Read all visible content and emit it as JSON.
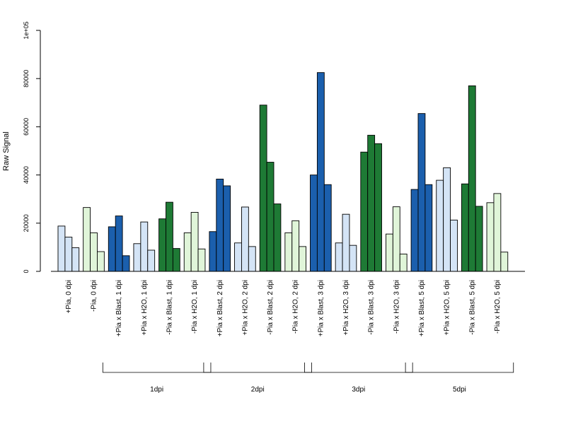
{
  "chart_data": {
    "type": "bar",
    "ylabel": "Raw Signal",
    "xlabel": "",
    "ylim": [
      0,
      100000
    ],
    "yticks": [
      "0",
      "20000",
      "40000",
      "60000",
      "80000",
      "1e+05"
    ],
    "ytick_values": [
      0,
      20000,
      40000,
      60000,
      80000,
      100000
    ],
    "grid": false,
    "colors": {
      "light_blue": "#d4e4f6",
      "dark_blue": "#1b5fad",
      "light_green": "#e0f5d9",
      "dark_green": "#1e7a35"
    },
    "categories": [
      {
        "label": "+Pia, 0 dpi",
        "color": "light_blue",
        "values": [
          18800,
          14200,
          9800
        ]
      },
      {
        "label": "-Pia, 0 dpi",
        "color": "light_green",
        "values": [
          26500,
          16000,
          8200
        ]
      },
      {
        "label": "+Pia x Blast, 1 dpi",
        "color": "dark_blue",
        "values": [
          18500,
          23000,
          6500
        ]
      },
      {
        "label": "+Pia x H2O, 1 dpi",
        "color": "light_blue",
        "values": [
          11500,
          20500,
          8800
        ]
      },
      {
        "label": "-Pia x Blast, 1 dpi",
        "color": "dark_green",
        "values": [
          21800,
          28700,
          9500
        ]
      },
      {
        "label": "-Pia x H2O, 1 dpi",
        "color": "light_green",
        "values": [
          16000,
          24500,
          9300
        ]
      },
      {
        "label": "+Pia x Blast, 2 dpi",
        "color": "dark_blue",
        "values": [
          16500,
          38300,
          35500
        ]
      },
      {
        "label": "+Pia x H2O, 2 dpi",
        "color": "light_blue",
        "values": [
          11800,
          26700,
          10300
        ]
      },
      {
        "label": "-Pia x Blast, 2 dpi",
        "color": "dark_green",
        "values": [
          69000,
          45300,
          28000
        ]
      },
      {
        "label": "-Pia x H2O, 2 dpi",
        "color": "light_green",
        "values": [
          16000,
          21000,
          10300
        ]
      },
      {
        "label": "+Pia x Blast, 3 dpi",
        "color": "dark_blue",
        "values": [
          40000,
          82500,
          36000
        ]
      },
      {
        "label": "+Pia x H2O, 3 dpi",
        "color": "light_blue",
        "values": [
          11800,
          23700,
          10800
        ]
      },
      {
        "label": "-Pia x Blast, 3 dpi",
        "color": "dark_green",
        "values": [
          49500,
          56500,
          53000
        ]
      },
      {
        "label": "-Pia x H2O, 3 dpi",
        "color": "light_green",
        "values": [
          15500,
          26800,
          7200
        ]
      },
      {
        "label": "+Pia x Blast, 5 dpi",
        "color": "dark_blue",
        "values": [
          34000,
          65500,
          36000
        ]
      },
      {
        "label": "+Pia x H2O, 5 dpi",
        "color": "light_blue",
        "values": [
          37800,
          43000,
          21300
        ]
      },
      {
        "label": "-Pia x Blast, 5 dpi",
        "color": "dark_green",
        "values": [
          36300,
          77000,
          27000
        ]
      },
      {
        "label": "-Pia x H2O, 5 dpi",
        "color": "light_green",
        "values": [
          28500,
          32300,
          8000
        ]
      }
    ],
    "groups": [
      {
        "label": "1dpi",
        "from": 2,
        "to": 5
      },
      {
        "label": "2dpi",
        "from": 6,
        "to": 9
      },
      {
        "label": "3dpi",
        "from": 10,
        "to": 13
      },
      {
        "label": "5dpi",
        "from": 14,
        "to": 17
      }
    ]
  }
}
